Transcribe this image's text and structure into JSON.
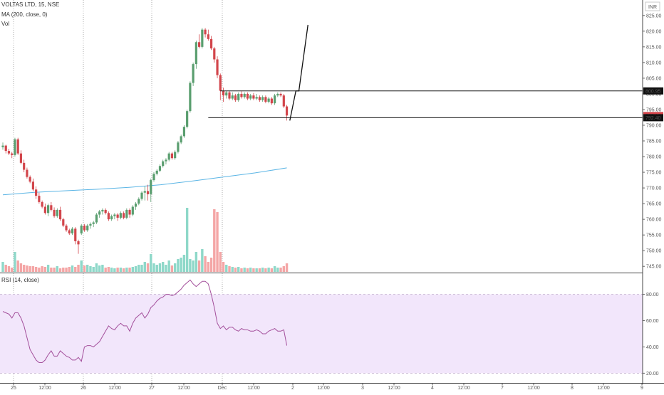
{
  "header": {
    "symbol_line": "VOLTAS LTD, 15, NSE",
    "ma_label": "MA (200, close, 0)",
    "vol_label": "Vol",
    "currency_badge": "INR",
    "rsi_label": "RSI (14, close)"
  },
  "colors": {
    "up": "#5a9e6f",
    "down": "#d2454b",
    "vol_up": "#8ed8c9",
    "vol_down": "#f4a6a6",
    "ma": "#5bb5e5",
    "rsi_line": "#a34f9b",
    "rsi_band": "#f2e6fb",
    "grid": "#777777"
  },
  "chart_data": [
    {
      "type": "candlestick",
      "price_axis": {
        "ticks": [
          "825.00",
          "820.00",
          "815.00",
          "810.00",
          "805.00",
          "800.00",
          "795.00",
          "790.00",
          "785.00",
          "780.00",
          "775.00",
          "770.00",
          "765.00",
          "760.00",
          "755.00",
          "750.00",
          "745.00"
        ],
        "range": [
          743,
          827
        ]
      },
      "price_labels": [
        {
          "value": 800.95,
          "text": "800.95",
          "style": "dark"
        },
        {
          "value": 793.1,
          "text": "793.10",
          "style": "red"
        },
        {
          "value": 792.4,
          "text": "792.40",
          "style": "dark"
        }
      ],
      "x_axis_labels": [
        "25",
        "12:00",
        "26",
        "12:00",
        "27",
        "12:00",
        "Dec",
        "12:00",
        "2",
        "12:00",
        "3",
        "12:00",
        "4",
        "12:00",
        "7",
        "12:00",
        "8",
        "12:00",
        "9"
      ],
      "day_separators": [
        "25",
        "26",
        "27",
        "Dec"
      ],
      "candles": [
        [
          783.0,
          784.5,
          782.2,
          783.5
        ],
        [
          783.5,
          783.8,
          781.0,
          781.8
        ],
        [
          781.8,
          782.5,
          780.5,
          781.0
        ],
        [
          781.0,
          781.5,
          779.5,
          780.5
        ],
        [
          780.5,
          786.0,
          780.0,
          785.5
        ],
        [
          785.5,
          786.0,
          780.5,
          781.0
        ],
        [
          781.0,
          782.0,
          777.5,
          778.0
        ],
        [
          778.0,
          779.0,
          775.0,
          775.8
        ],
        [
          775.8,
          776.5,
          773.0,
          773.5
        ],
        [
          773.5,
          774.0,
          771.5,
          772.0
        ],
        [
          772.0,
          773.0,
          769.0,
          769.5
        ],
        [
          769.5,
          770.5,
          766.5,
          767.5
        ],
        [
          767.5,
          768.5,
          765.0,
          765.5
        ],
        [
          765.5,
          766.0,
          763.5,
          764.0
        ],
        [
          764.0,
          765.0,
          761.5,
          762.0
        ],
        [
          762.0,
          765.0,
          761.0,
          764.5
        ],
        [
          764.5,
          765.5,
          762.5,
          763.0
        ],
        [
          763.0,
          763.8,
          760.5,
          761.0
        ],
        [
          761.0,
          763.5,
          760.5,
          763.0
        ],
        [
          763.0,
          764.0,
          759.5,
          760.0
        ],
        [
          760.0,
          760.5,
          757.5,
          758.0
        ],
        [
          758.0,
          758.5,
          756.0,
          756.5
        ],
        [
          756.5,
          757.0,
          755.0,
          755.5
        ],
        [
          755.5,
          757.5,
          755.0,
          757.0
        ],
        [
          757.0,
          757.5,
          752.0,
          753.0
        ],
        [
          753.0,
          753.5,
          749.0,
          752.0
        ],
        [
          755.5,
          758.5,
          755.0,
          758.0
        ],
        [
          758.0,
          758.5,
          756.0,
          756.5
        ],
        [
          756.5,
          758.5,
          756.0,
          758.0
        ],
        [
          758.0,
          759.0,
          757.0,
          758.5
        ],
        [
          758.5,
          759.5,
          757.5,
          759.0
        ],
        [
          759.0,
          762.0,
          758.5,
          761.5
        ],
        [
          761.5,
          763.0,
          760.5,
          762.5
        ],
        [
          762.5,
          763.5,
          761.5,
          763.0
        ],
        [
          763.0,
          763.5,
          761.5,
          762.0
        ],
        [
          762.0,
          762.5,
          759.5,
          760.0
        ],
        [
          760.0,
          761.5,
          759.5,
          761.0
        ],
        [
          761.0,
          762.0,
          760.0,
          761.5
        ],
        [
          761.5,
          762.0,
          759.5,
          760.5
        ],
        [
          760.5,
          762.5,
          760.0,
          762.0
        ],
        [
          762.0,
          762.5,
          760.0,
          760.5
        ],
        [
          760.5,
          763.5,
          760.0,
          763.0
        ],
        [
          763.0,
          763.5,
          760.5,
          761.5
        ],
        [
          761.5,
          764.5,
          761.0,
          764.0
        ],
        [
          764.0,
          765.5,
          763.0,
          765.0
        ],
        [
          765.0,
          767.0,
          764.5,
          766.5
        ],
        [
          766.5,
          769.0,
          766.0,
          768.5
        ],
        [
          768.5,
          770.5,
          766.0,
          769.0
        ],
        [
          769.0,
          771.0,
          766.0,
          768.0
        ],
        [
          768.0,
          773.0,
          765.5,
          772.5
        ],
        [
          772.5,
          775.0,
          772.0,
          774.5
        ],
        [
          774.5,
          776.0,
          774.0,
          775.5
        ],
        [
          775.5,
          777.5,
          775.0,
          777.0
        ],
        [
          777.0,
          779.0,
          776.5,
          778.5
        ],
        [
          778.5,
          779.5,
          777.5,
          779.0
        ],
        [
          779.0,
          781.5,
          778.5,
          781.0
        ],
        [
          781.0,
          781.5,
          779.0,
          779.5
        ],
        [
          779.5,
          782.0,
          779.0,
          781.5
        ],
        [
          781.5,
          785.0,
          781.0,
          784.5
        ],
        [
          784.5,
          787.0,
          784.0,
          786.5
        ],
        [
          786.5,
          790.0,
          786.0,
          789.5
        ],
        [
          789.5,
          795.0,
          789.0,
          794.5
        ],
        [
          794.5,
          804.0,
          794.0,
          803.5
        ],
        [
          803.5,
          810.0,
          802.5,
          809.5
        ],
        [
          809.5,
          817.0,
          808.0,
          816.5
        ],
        [
          816.5,
          819.0,
          814.5,
          815.0
        ],
        [
          815.0,
          821.0,
          814.5,
          820.5
        ],
        [
          820.5,
          821.0,
          818.0,
          819.0
        ],
        [
          819.0,
          820.5,
          817.0,
          817.5
        ],
        [
          817.5,
          818.5,
          814.0,
          814.5
        ],
        [
          814.5,
          815.0,
          810.0,
          811.0
        ],
        [
          811.0,
          812.0,
          805.0,
          806.0
        ],
        [
          806.0,
          806.5,
          798.0,
          801.0
        ],
        [
          801.0,
          802.0,
          797.5,
          799.5
        ],
        [
          799.5,
          801.0,
          798.5,
          800.5
        ],
        [
          800.5,
          801.0,
          798.0,
          798.5
        ],
        [
          798.5,
          800.5,
          798.0,
          799.5
        ],
        [
          799.5,
          800.0,
          797.5,
          798.0
        ],
        [
          798.0,
          800.5,
          797.5,
          800.0
        ],
        [
          800.0,
          800.8,
          798.5,
          799.0
        ],
        [
          799.0,
          800.5,
          798.5,
          800.0
        ],
        [
          800.0,
          800.5,
          798.0,
          798.5
        ],
        [
          798.5,
          800.0,
          798.0,
          799.5
        ],
        [
          799.5,
          800.3,
          798.0,
          798.5
        ],
        [
          798.5,
          800.0,
          798.0,
          799.0
        ],
        [
          799.0,
          799.5,
          797.5,
          798.0
        ],
        [
          798.0,
          799.5,
          797.5,
          799.0
        ],
        [
          799.0,
          799.5,
          797.0,
          797.5
        ],
        [
          797.5,
          799.0,
          797.0,
          798.5
        ],
        [
          798.5,
          799.0,
          796.5,
          797.0
        ],
        [
          797.0,
          800.0,
          796.5,
          799.5
        ],
        [
          799.5,
          800.5,
          799.0,
          800.0
        ],
        [
          800.0,
          800.5,
          799.0,
          799.5
        ],
        [
          799.5,
          800.0,
          795.5,
          796.0
        ],
        [
          796.0,
          796.5,
          791.5,
          793.1
        ]
      ],
      "volume": [
        [
          14,
          "up"
        ],
        [
          10,
          "down"
        ],
        [
          8,
          "down"
        ],
        [
          6,
          "down"
        ],
        [
          28,
          "up"
        ],
        [
          16,
          "down"
        ],
        [
          12,
          "down"
        ],
        [
          10,
          "down"
        ],
        [
          9,
          "down"
        ],
        [
          8,
          "down"
        ],
        [
          8,
          "down"
        ],
        [
          7,
          "down"
        ],
        [
          6,
          "down"
        ],
        [
          8,
          "down"
        ],
        [
          7,
          "down"
        ],
        [
          10,
          "up"
        ],
        [
          6,
          "down"
        ],
        [
          6,
          "down"
        ],
        [
          8,
          "up"
        ],
        [
          5,
          "down"
        ],
        [
          6,
          "down"
        ],
        [
          6,
          "down"
        ],
        [
          7,
          "down"
        ],
        [
          9,
          "up"
        ],
        [
          7,
          "down"
        ],
        [
          10,
          "down"
        ],
        [
          16,
          "up"
        ],
        [
          9,
          "down"
        ],
        [
          10,
          "up"
        ],
        [
          8,
          "up"
        ],
        [
          7,
          "up"
        ],
        [
          12,
          "up"
        ],
        [
          9,
          "up"
        ],
        [
          10,
          "up"
        ],
        [
          6,
          "down"
        ],
        [
          7,
          "down"
        ],
        [
          6,
          "up"
        ],
        [
          5,
          "up"
        ],
        [
          6,
          "down"
        ],
        [
          6,
          "up"
        ],
        [
          5,
          "down"
        ],
        [
          6,
          "up"
        ],
        [
          6,
          "down"
        ],
        [
          7,
          "up"
        ],
        [
          8,
          "up"
        ],
        [
          10,
          "up"
        ],
        [
          10,
          "up"
        ],
        [
          14,
          "up"
        ],
        [
          12,
          "down"
        ],
        [
          25,
          "up"
        ],
        [
          12,
          "up"
        ],
        [
          10,
          "up"
        ],
        [
          12,
          "up"
        ],
        [
          14,
          "up"
        ],
        [
          10,
          "up"
        ],
        [
          16,
          "up"
        ],
        [
          9,
          "down"
        ],
        [
          12,
          "up"
        ],
        [
          18,
          "up"
        ],
        [
          20,
          "up"
        ],
        [
          24,
          "up"
        ],
        [
          90,
          "up"
        ],
        [
          18,
          "up"
        ],
        [
          16,
          "up"
        ],
        [
          28,
          "up"
        ],
        [
          16,
          "down"
        ],
        [
          32,
          "up"
        ],
        [
          22,
          "down"
        ],
        [
          14,
          "down"
        ],
        [
          20,
          "down"
        ],
        [
          88,
          "down"
        ],
        [
          84,
          "down"
        ],
        [
          28,
          "down"
        ],
        [
          14,
          "down"
        ],
        [
          10,
          "up"
        ],
        [
          8,
          "down"
        ],
        [
          7,
          "up"
        ],
        [
          6,
          "down"
        ],
        [
          7,
          "up"
        ],
        [
          5,
          "down"
        ],
        [
          6,
          "up"
        ],
        [
          5,
          "down"
        ],
        [
          6,
          "up"
        ],
        [
          5,
          "down"
        ],
        [
          5,
          "up"
        ],
        [
          5,
          "down"
        ],
        [
          6,
          "up"
        ],
        [
          5,
          "down"
        ],
        [
          6,
          "up"
        ],
        [
          5,
          "down"
        ],
        [
          8,
          "up"
        ],
        [
          6,
          "up"
        ],
        [
          6,
          "down"
        ],
        [
          8,
          "down"
        ],
        [
          12,
          "down"
        ]
      ],
      "ma_200": [
        767.8,
        768.6,
        769.1,
        769.6,
        770.2,
        771.0,
        772.2,
        773.5,
        774.8,
        776.4
      ],
      "horizontal_levels": [
        800.95,
        792.4
      ],
      "drawn_path": [
        [
          95,
          791.5
        ],
        [
          97,
          800.95
        ],
        [
          98,
          800.95
        ],
        [
          101,
          822.0
        ]
      ]
    },
    {
      "type": "line",
      "name": "RSI (14, close)",
      "y_ticks": [
        "80.00",
        "60.00",
        "40.00",
        "20.00"
      ],
      "ylim": [
        18,
        95
      ],
      "band": [
        20,
        80
      ],
      "values": [
        67,
        66,
        65,
        62,
        66,
        66,
        62,
        56,
        47,
        38,
        34,
        30,
        28,
        28,
        30,
        34,
        37,
        33,
        33,
        37,
        35,
        33,
        32,
        30,
        30,
        32,
        29,
        40,
        41,
        41,
        40,
        42,
        44,
        48,
        52,
        56,
        54,
        53,
        56,
        58,
        56,
        56,
        52,
        58,
        62,
        64,
        66,
        62,
        65,
        70,
        72,
        75,
        77,
        78,
        80,
        80,
        79,
        80,
        82,
        84,
        87,
        89,
        91,
        88,
        86,
        88,
        90,
        90,
        88,
        80,
        70,
        58,
        54,
        56,
        53,
        55,
        55,
        53,
        52,
        54,
        53,
        53,
        52,
        52,
        53,
        52,
        50,
        50,
        52,
        53,
        54,
        52,
        52,
        53,
        41
      ]
    }
  ]
}
